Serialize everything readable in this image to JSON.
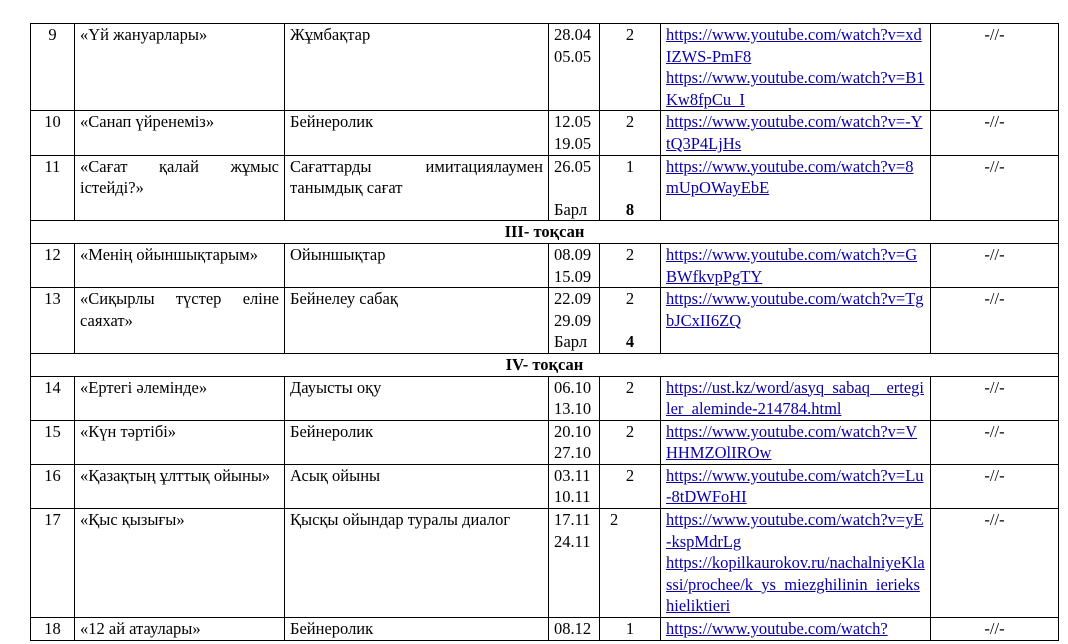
{
  "rows": [
    {
      "type": "lesson",
      "num": "9",
      "title": "«Үй жануарлары»",
      "form": "Жұмбақтар",
      "dates": [
        "28.04",
        "05.05"
      ],
      "hours": [
        "2"
      ],
      "links": [
        "https://www.youtube.com/watch?v=xdIZWS-PmF8",
        "https://www.youtube.com/watch?v=B1Kw8fpCu_I"
      ],
      "note": "-//-"
    },
    {
      "type": "lesson",
      "num": "10",
      "title": "«Санап үйренеміз»",
      "form": "Бейнеролик",
      "dates": [
        "12.05",
        "19.05"
      ],
      "hours": [
        "2"
      ],
      "links": [
        "https://www.youtube.com/watch?v=-YtQ3P4LjHs"
      ],
      "note": "-//-"
    },
    {
      "type": "lesson",
      "num": "11",
      "title": "«Сағат қалай жұмыс істейді?»",
      "form": "Сағаттарды имитациялаумен танымдық сағат",
      "dates": [
        "26.05",
        "",
        "Барл"
      ],
      "hours": [
        "1",
        "",
        ""
      ],
      "total": "8",
      "links": [
        "https://www.youtube.com/watch?v=8mUpOWayEbE"
      ],
      "note": "-//-"
    },
    {
      "type": "quarter",
      "label": "ІІІ- тоқсан"
    },
    {
      "type": "lesson",
      "num": "12",
      "title": "«Менің ойыншықтарым»",
      "form": "Ойыншықтар",
      "dates": [
        "08.09",
        "15.09"
      ],
      "hours": [
        "2"
      ],
      "links": [
        "https://www.youtube.com/watch?v=GBWfkvpPgTY"
      ],
      "note": "-//-"
    },
    {
      "type": "lesson",
      "num": "13",
      "title": "«Сиқырлы түстер еліне саяхат»",
      "form": "Бейнелеу сабақ",
      "dates": [
        "22.09",
        "29.09",
        "Барл"
      ],
      "hours": [
        "2",
        "",
        ""
      ],
      "total": "4",
      "links": [
        "https://www.youtube.com/watch?v=TgbJCxII6ZQ"
      ],
      "note": "-//-"
    },
    {
      "type": "quarter",
      "label": "ІV- тоқсан"
    },
    {
      "type": "lesson",
      "num": "14",
      "title": "«Ертегі әлемінде»",
      "form": "Дауысты оқу",
      "dates": [
        "06.10",
        "13.10"
      ],
      "hours": [
        "2"
      ],
      "links": [
        "https://ust.kz/word/asyq_sabaq__ertegiler_aleminde-214784.html"
      ],
      "note": "-//-"
    },
    {
      "type": "lesson",
      "num": "15",
      "title": "«Күн тәртібі»",
      "form": "Бейнеролик",
      "dates": [
        "20.10",
        "27.10"
      ],
      "hours": [
        "2"
      ],
      "links": [
        "https://www.youtube.com/watch?v=VHHMZOlIROw"
      ],
      "note": "-//-"
    },
    {
      "type": "lesson",
      "num": "16",
      "title": "«Қазақтың ұлттық ойыны»",
      "form": "Асық ойыны",
      "dates": [
        "03.11",
        "10.11"
      ],
      "hours": [
        "2"
      ],
      "links": [
        "https://www.youtube.com/watch?v=Lu-8tDWFoHI"
      ],
      "note": "-//-"
    },
    {
      "type": "lesson",
      "num": "17",
      "title": "«Қыс қызығы»",
      "form": "Қысқы ойындар туралы диалог",
      "dates": [
        "17.11",
        "24.11"
      ],
      "hours": [
        "2"
      ],
      "hoursAlign": "left",
      "links": [
        "https://www.youtube.com/watch?v=yE-kspMdrLg",
        "https://kopilkaurokov.ru/nachalniyeKlassi/prochee/k_ys_miezghilinin_ieriekshieliktieri"
      ],
      "note": "-//-"
    },
    {
      "type": "lesson",
      "num": "18",
      "title": "«12 ай атаулары»",
      "form": "Бейнеролик",
      "dates": [
        "08.12"
      ],
      "hours": [
        "1"
      ],
      "links": [
        "https://www.youtube.com/watch?"
      ],
      "note": "-//-"
    }
  ]
}
